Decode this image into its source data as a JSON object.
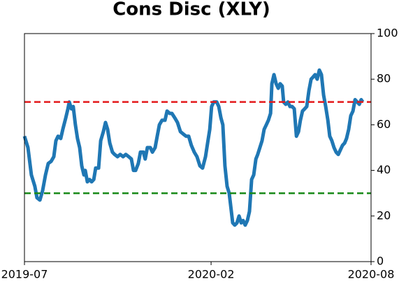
{
  "chart_data": {
    "type": "line",
    "title": "Cons Disc (XLY)",
    "x": [
      0,
      0.13,
      0.26,
      0.39,
      0.47,
      0.58,
      0.68,
      0.79,
      0.89,
      1.0,
      1.1,
      1.18,
      1.26,
      1.36,
      1.44,
      1.55,
      1.63,
      1.68,
      1.76,
      1.83,
      1.91,
      1.99,
      2.07,
      2.15,
      2.23,
      2.28,
      2.36,
      2.44,
      2.52,
      2.6,
      2.67,
      2.78,
      2.86,
      2.96,
      3.04,
      3.12,
      3.2,
      3.3,
      3.38,
      3.49,
      3.59,
      3.7,
      3.8,
      3.91,
      4.01,
      4.09,
      4.17,
      4.27,
      4.35,
      4.46,
      4.53,
      4.61,
      4.72,
      4.8,
      4.9,
      4.98,
      5.06,
      5.16,
      5.27,
      5.35,
      5.45,
      5.53,
      5.64,
      5.74,
      5.85,
      5.95,
      6.06,
      6.16,
      6.26,
      6.37,
      6.47,
      6.58,
      6.68,
      6.79,
      6.87,
      6.95,
      7.02,
      7.1,
      7.21,
      7.29,
      7.37,
      7.44,
      7.52,
      7.6,
      7.68,
      7.76,
      7.81,
      7.89,
      7.97,
      8.05,
      8.13,
      8.2,
      8.28,
      8.36,
      8.44,
      8.52,
      8.6,
      8.68,
      8.75,
      8.83,
      8.91,
      8.99,
      9.07,
      9.15,
      9.23,
      9.28,
      9.36,
      9.44,
      9.52,
      9.59,
      9.67,
      9.72,
      9.8,
      9.88,
      9.96,
      10.04,
      10.12,
      10.2,
      10.28,
      10.35,
      10.43,
      10.51,
      10.59,
      10.67,
      10.75,
      10.83,
      10.9,
      10.98,
      11.06,
      11.14,
      11.22,
      11.3,
      11.38,
      11.45,
      11.53,
      11.61,
      11.69,
      11.77,
      11.85,
      11.93,
      12.01,
      12.08,
      12.16,
      12.24,
      12.32,
      12.4,
      12.48,
      12.56,
      12.63,
      12.69
    ],
    "series": [
      {
        "color": "#1f77b4",
        "values": [
          55,
          50,
          38,
          33,
          28,
          27,
          31,
          38,
          43,
          44,
          46,
          53,
          55,
          54,
          58,
          63,
          67,
          70,
          67,
          68,
          60,
          54,
          50,
          42,
          38,
          40,
          35,
          36,
          35,
          36,
          41,
          41,
          53,
          57,
          61,
          58,
          52,
          48,
          47,
          46,
          47,
          46,
          47,
          46,
          45,
          40,
          40,
          43,
          48,
          48,
          45,
          50,
          50,
          48,
          50,
          55,
          60,
          62,
          62,
          66,
          65,
          65,
          63,
          61,
          57,
          56,
          55,
          55,
          51,
          48,
          46,
          42,
          41,
          46,
          52,
          58,
          68,
          70,
          70,
          68,
          63,
          60,
          42,
          33,
          30,
          22,
          17,
          16,
          17,
          20,
          17,
          18,
          16,
          18,
          22,
          36,
          38,
          45,
          47,
          50,
          53,
          58,
          60,
          62,
          65,
          78,
          82,
          78,
          76,
          78,
          77,
          70,
          69,
          70,
          68,
          68,
          67,
          55,
          57,
          62,
          66,
          67,
          68,
          75,
          80,
          81,
          82,
          80,
          84,
          82,
          73,
          68,
          62,
          55,
          53,
          50,
          48,
          47,
          49,
          51,
          52,
          54,
          58,
          64,
          66,
          71,
          70,
          69,
          71,
          70
        ]
      }
    ],
    "hlines": [
      {
        "value": 70,
        "color": "#e31a1c"
      },
      {
        "value": 30,
        "color": "#1a8a1a"
      }
    ],
    "xlim": [
      0,
      13
    ],
    "xticks": [
      {
        "value": 0,
        "label": "2019-07"
      },
      {
        "value": 7,
        "label": "2020-02"
      },
      {
        "value": 13,
        "label": "2020-08"
      }
    ],
    "ylim": [
      0,
      100
    ],
    "yticks": [
      0,
      20,
      40,
      60,
      80,
      100
    ]
  }
}
